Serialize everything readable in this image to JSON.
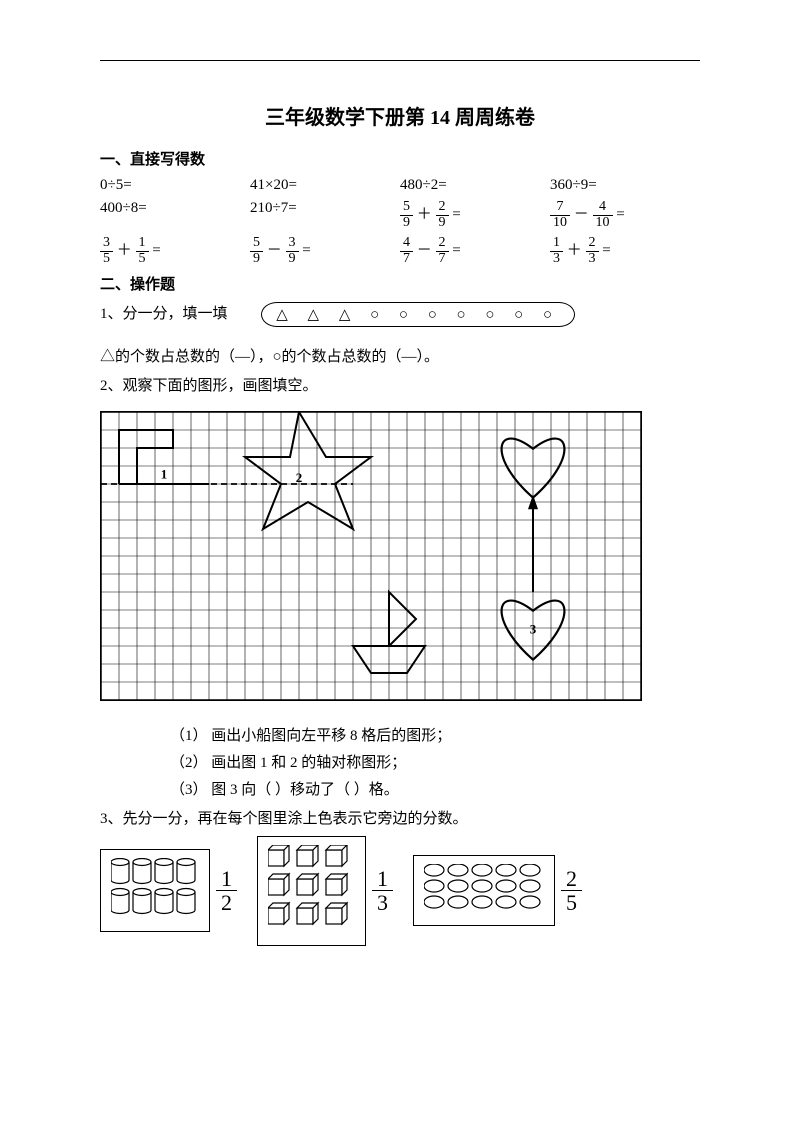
{
  "document": {
    "title": "三年级数学下册第 14 周周练卷",
    "hr_color": "#000000"
  },
  "section1": {
    "heading": "一、直接写得数",
    "items": [
      {
        "type": "plain",
        "text": "0÷5="
      },
      {
        "type": "plain",
        "text": "41×20="
      },
      {
        "type": "plain",
        "text": "480÷2="
      },
      {
        "type": "plain",
        "text": "360÷9="
      },
      {
        "type": "plain",
        "text": "400÷8="
      },
      {
        "type": "plain",
        "text": "210÷7="
      },
      {
        "type": "frac_add",
        "a_num": "5",
        "a_den": "9",
        "op": "＋",
        "b_num": "2",
        "b_den": "9"
      },
      {
        "type": "frac_add",
        "a_num": "7",
        "a_den": "10",
        "op": "－",
        "b_num": "4",
        "b_den": "10"
      },
      {
        "type": "frac_add",
        "a_num": "3",
        "a_den": "5",
        "op": "＋",
        "b_num": "1",
        "b_den": "5"
      },
      {
        "type": "frac_add",
        "a_num": "5",
        "a_den": "9",
        "op": "－",
        "b_num": "3",
        "b_den": "9"
      },
      {
        "type": "frac_add",
        "a_num": "4",
        "a_den": "7",
        "op": "－",
        "b_num": "2",
        "b_den": "7"
      },
      {
        "type": "frac_add",
        "a_num": "1",
        "a_den": "3",
        "op": "＋",
        "b_num": "2",
        "b_den": "3"
      }
    ]
  },
  "section2": {
    "heading": "二、操作题",
    "q1_label": "1、分一分，填一填",
    "q1_shapes": "△ △ △ ○ ○ ○ ○ ○ ○ ○",
    "q1_blank": "△的个数占总数的（—），○的个数占总数的（—）。",
    "q2_label": "2、观察下面的图形，画图填空。",
    "grid": {
      "cols": 30,
      "rows": 16,
      "cell": 18,
      "stroke": "#000000",
      "stroke_width": 0.6,
      "border_width": 1.5,
      "labels": {
        "boat": "1",
        "star": "2",
        "heart": "3"
      }
    },
    "sub1": "（1）  画出小船图向左平移 8 格后的图形；",
    "sub2": "（2）  画出图 1 和 2 的轴对称图形；",
    "sub3": "（3）  图 3 向（        ）移动了（        ）格。",
    "q3_label": "3、先分一分，再在每个图里涂上色表示它旁边的分数。",
    "q3_items": [
      {
        "kind": "cylinders",
        "rows": 2,
        "cols": 4,
        "frac_num": "1",
        "frac_den": "2"
      },
      {
        "kind": "cubes",
        "rows": 3,
        "cols": 3,
        "frac_num": "1",
        "frac_den": "3"
      },
      {
        "kind": "ovals",
        "rows": 3,
        "cols": 5,
        "frac_num": "2",
        "frac_den": "5"
      }
    ]
  }
}
